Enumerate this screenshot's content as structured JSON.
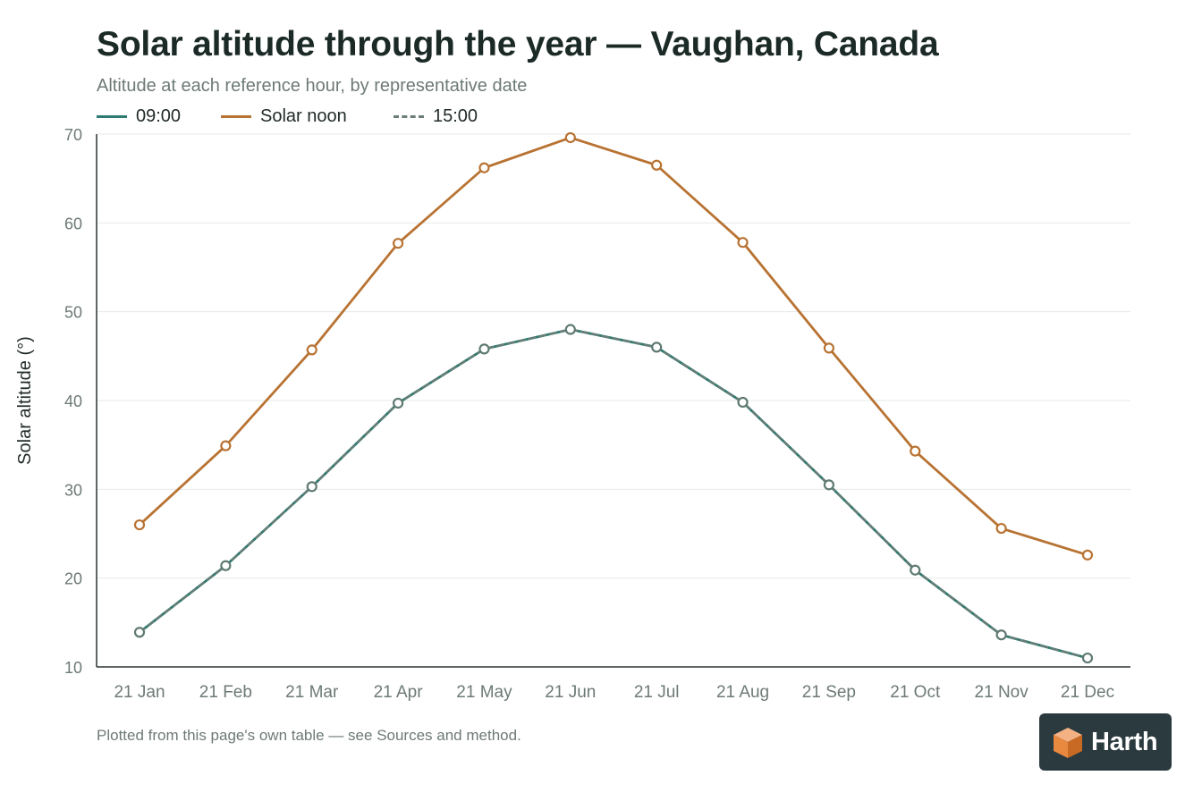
{
  "header": {
    "title": "Solar altitude through the year — Vaughan, Canada",
    "subtitle": "Altitude at each reference hour, by representative date"
  },
  "footer": {
    "note": "Plotted from this page's own table — see Sources and method.",
    "logo_text": "Harth"
  },
  "colors": {
    "morning": "#2e7a6e",
    "noon": "#b87333",
    "afternoon": "#6a7d78"
  },
  "chart_data": {
    "type": "line",
    "title": "Solar altitude through the year — Vaughan, Canada",
    "subtitle": "Altitude at each reference hour, by representative date",
    "xlabel": "",
    "ylabel": "Solar altitude (°)",
    "ylim": [
      10,
      70
    ],
    "yticks": [
      "10",
      "20",
      "30",
      "40",
      "50",
      "60",
      "70"
    ],
    "grid": "horizontal",
    "legend_position": "top-left",
    "categories": [
      "21 Jan",
      "21 Feb",
      "21 Mar",
      "21 Apr",
      "21 May",
      "21 Jun",
      "21 Jul",
      "21 Aug",
      "21 Sep",
      "21 Oct",
      "21 Nov",
      "21 Dec"
    ],
    "series": [
      {
        "name": "09:00",
        "color": "#2e7a6e",
        "style": "solid",
        "values": [
          13.9,
          21.4,
          30.3,
          39.7,
          45.8,
          48.0,
          46.0,
          39.8,
          30.5,
          20.9,
          13.6,
          11.0
        ]
      },
      {
        "name": "Solar noon",
        "color": "#b87333",
        "style": "solid",
        "values": [
          26.0,
          34.9,
          45.7,
          57.7,
          66.2,
          69.6,
          66.5,
          57.8,
          45.9,
          34.3,
          25.6,
          22.6
        ]
      },
      {
        "name": "15:00",
        "color": "#6a7d78",
        "style": "dashed",
        "values": [
          13.9,
          21.4,
          30.3,
          39.7,
          45.8,
          48.0,
          46.0,
          39.8,
          30.5,
          20.9,
          13.6,
          11.0
        ]
      }
    ]
  }
}
